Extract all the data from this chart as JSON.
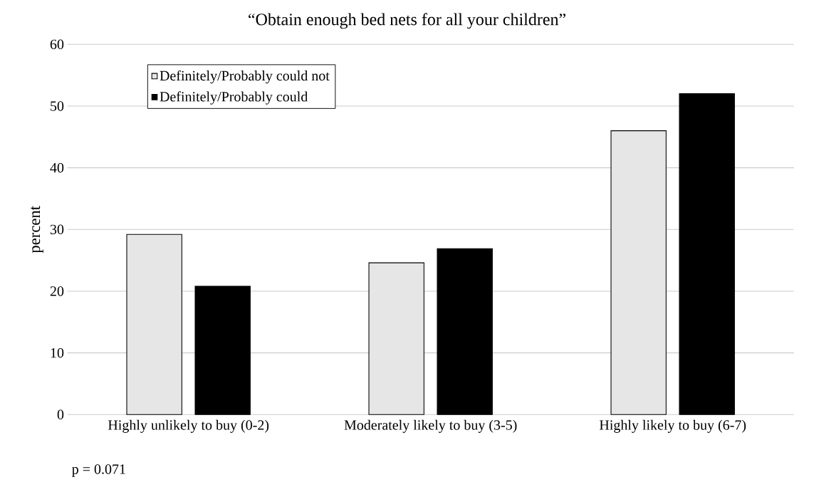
{
  "chart_data": {
    "type": "bar",
    "title": "“Obtain enough bed nets for all your children”",
    "ylabel": "percent",
    "categories": [
      "Highly unlikely to buy (0-2)",
      "Moderately likely to buy (3-5)",
      "Highly likely to buy (6-7)"
    ],
    "series": [
      {
        "name": "Definitely/Probably could not",
        "color": "#e6e6e6",
        "values": [
          29.2,
          24.6,
          46.0
        ]
      },
      {
        "name": "Definitely/Probably could",
        "color": "#000000",
        "values": [
          20.8,
          26.9,
          52.0
        ]
      }
    ],
    "ylim": [
      0,
      60
    ],
    "yticks": [
      0,
      10,
      20,
      30,
      40,
      50,
      60
    ],
    "grid": "y",
    "legend": "top left",
    "annotations": [
      "p = 0.071"
    ]
  }
}
